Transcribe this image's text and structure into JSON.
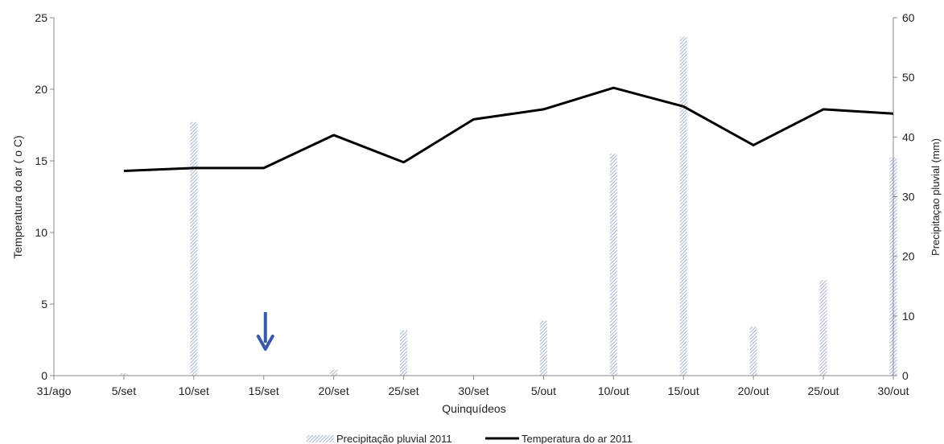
{
  "chart_data": {
    "type": "bar",
    "categories": [
      "31/ago",
      "5/set",
      "10/set",
      "15/set",
      "20/set",
      "25/set",
      "30/set",
      "5/out",
      "10/out",
      "15/out",
      "20/out",
      "25/out",
      "30/out"
    ],
    "xlabel": "Quinquídeos",
    "ylabel_left": "Temperatura do ar ( o C)",
    "ylabel_right": "Precipitaçao pluvial (mm)",
    "ylim_left": [
      0,
      25
    ],
    "yticks_left": [
      0,
      5,
      10,
      15,
      20,
      25
    ],
    "ylim_right": [
      0,
      60
    ],
    "yticks_right": [
      0,
      10,
      20,
      30,
      40,
      50,
      60
    ],
    "grid": false,
    "legend_position": "bottom",
    "series": [
      {
        "name": "Precipitação pluvial 2011",
        "type": "bar",
        "axis": "right",
        "color": "#8fa0cc",
        "values": [
          null,
          0.4,
          42.5,
          null,
          1.0,
          7.6,
          null,
          9.2,
          37.2,
          56.8,
          8.2,
          16.0,
          36.6
        ]
      },
      {
        "name": "Temperatura do ar 2011",
        "type": "line",
        "axis": "left",
        "color": "#000000",
        "values": [
          null,
          14.3,
          14.5,
          14.5,
          16.8,
          14.9,
          17.9,
          18.6,
          20.1,
          18.8,
          16.1,
          18.6,
          18.3
        ]
      }
    ],
    "annotations": [
      {
        "type": "arrow-down",
        "category": "15/set",
        "color": "#3a5aa8"
      }
    ]
  }
}
